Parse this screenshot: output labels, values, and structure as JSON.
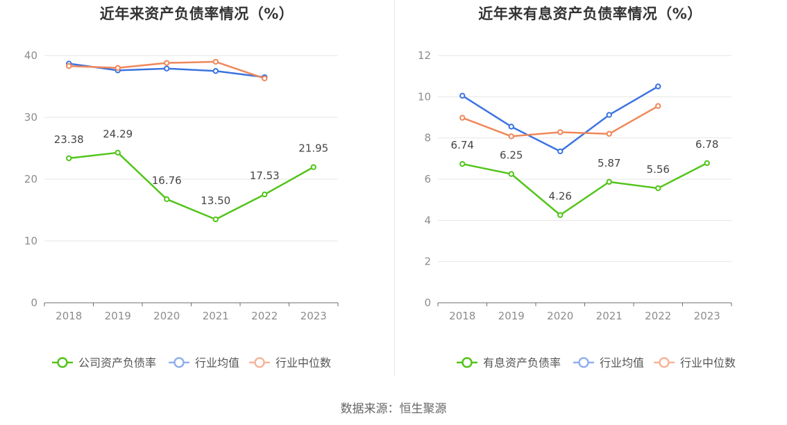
{
  "source_text": "数据来源：恒生聚源",
  "chart_data": [
    {
      "type": "line",
      "title": "近年来资产负债率情况（%）",
      "categories": [
        "2018",
        "2019",
        "2020",
        "2021",
        "2022",
        "2023"
      ],
      "ylim": [
        0,
        40
      ],
      "yticks": [
        0,
        10,
        20,
        30,
        40
      ],
      "grid": true,
      "legend_position": "bottom",
      "series": [
        {
          "name": "公司资产负债率",
          "color": "#52c41a",
          "values": [
            23.38,
            24.29,
            16.76,
            13.5,
            17.53,
            21.95
          ],
          "labels": [
            "23.38",
            "24.29",
            "16.76",
            "13.50",
            "17.53",
            "21.95"
          ]
        },
        {
          "name": "行业均值",
          "color": "#3b73e0",
          "values": [
            38.7,
            37.6,
            37.9,
            37.5,
            36.5,
            null
          ]
        },
        {
          "name": "行业中位数",
          "color": "#f0875a",
          "values": [
            38.3,
            38.0,
            38.8,
            39.0,
            36.3,
            null
          ]
        }
      ]
    },
    {
      "type": "line",
      "title": "近年来有息资产负债率情况（%）",
      "categories": [
        "2018",
        "2019",
        "2020",
        "2021",
        "2022",
        "2023"
      ],
      "ylim": [
        0,
        12
      ],
      "yticks": [
        0,
        2,
        4,
        6,
        8,
        10,
        12
      ],
      "grid": true,
      "legend_position": "bottom",
      "series": [
        {
          "name": "有息资产负债率",
          "color": "#52c41a",
          "values": [
            6.74,
            6.25,
            4.26,
            5.87,
            5.56,
            6.78
          ],
          "labels": [
            "6.74",
            "6.25",
            "4.26",
            "5.87",
            "5.56",
            "6.78"
          ]
        },
        {
          "name": "行业均值",
          "color": "#3b73e0",
          "values": [
            10.05,
            8.55,
            7.35,
            9.12,
            10.5,
            null
          ]
        },
        {
          "name": "行业中位数",
          "color": "#f0875a",
          "values": [
            8.98,
            8.08,
            8.28,
            8.2,
            9.55,
            null
          ]
        }
      ]
    }
  ]
}
